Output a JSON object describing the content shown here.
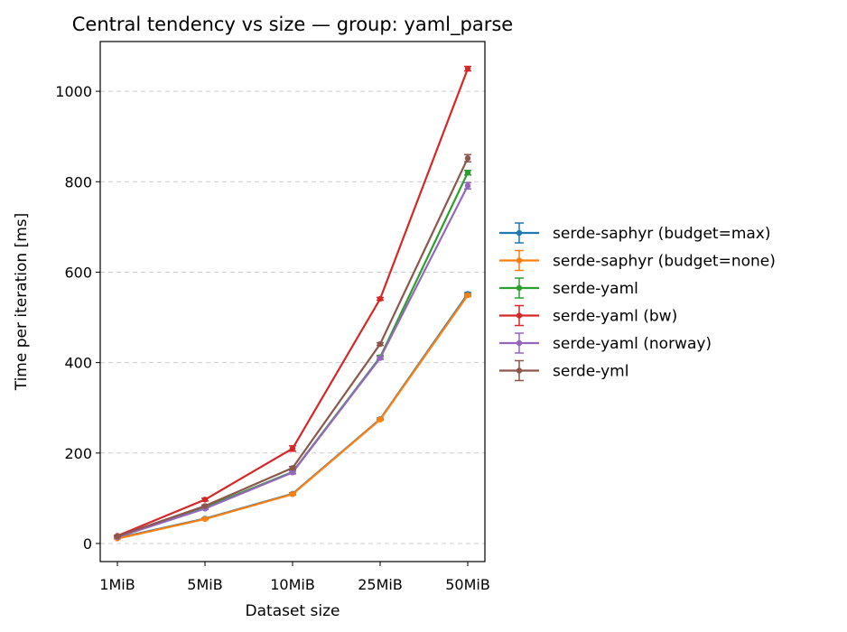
{
  "chart_data": {
    "type": "line",
    "title": "Central tendency vs size — group: yaml_parse",
    "xlabel": "Dataset size",
    "ylabel": "Time per iteration [ms]",
    "categories": [
      "1MiB",
      "5MiB",
      "10MiB",
      "25MiB",
      "50MiB"
    ],
    "ylim": [
      -40,
      1110
    ],
    "yticks": [
      0,
      200,
      400,
      600,
      800,
      1000
    ],
    "grid": "y-dashed",
    "legend_position": "right",
    "series": [
      {
        "name": "serde-saphyr (budget=max)",
        "color": "#1f77b4",
        "values": [
          12,
          55,
          110,
          275,
          552
        ],
        "errors": [
          1,
          1.5,
          2,
          2,
          3
        ]
      },
      {
        "name": "serde-saphyr (budget=none)",
        "color": "#ff7f0e",
        "values": [
          11,
          54,
          109,
          274,
          549
        ],
        "errors": [
          1,
          1.5,
          2,
          2,
          3
        ]
      },
      {
        "name": "serde-yaml",
        "color": "#2ca02c",
        "values": [
          15,
          80,
          158,
          412,
          820
        ],
        "errors": [
          1,
          2,
          3,
          4,
          5
        ]
      },
      {
        "name": "serde-yaml (bw)",
        "color": "#d62728",
        "values": [
          17,
          97,
          210,
          541,
          1050
        ],
        "errors": [
          1,
          3,
          6,
          3,
          5
        ]
      },
      {
        "name": "serde-yaml (norway)",
        "color": "#9467bd",
        "values": [
          14,
          77,
          157,
          410,
          791
        ],
        "errors": [
          1,
          2,
          3,
          3,
          7
        ]
      },
      {
        "name": "serde-yml",
        "color": "#8c564b",
        "values": [
          16,
          83,
          167,
          441,
          852
        ],
        "errors": [
          1,
          2,
          3,
          3,
          8
        ]
      }
    ]
  }
}
